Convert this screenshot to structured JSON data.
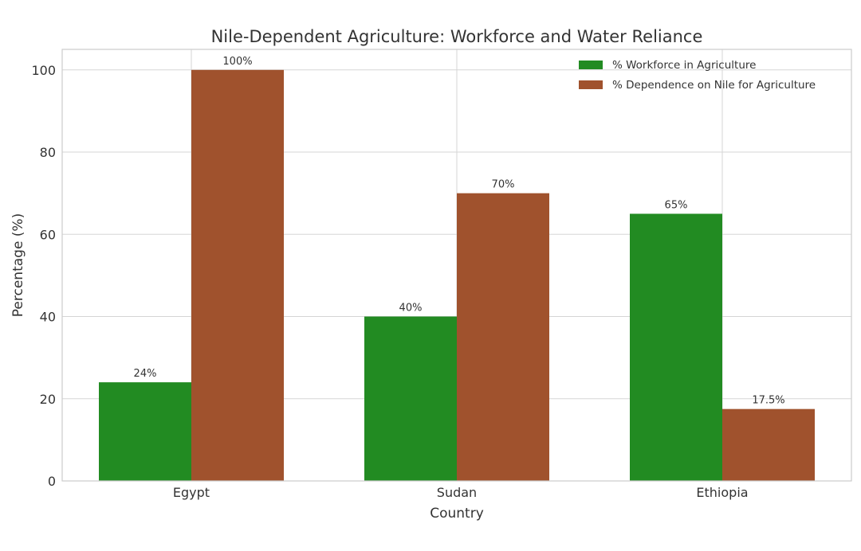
{
  "chart_data": {
    "type": "bar",
    "title": "Nile-Dependent Agriculture: Workforce and Water Reliance",
    "xlabel": "Country",
    "ylabel": "Percentage (%)",
    "categories": [
      "Egypt",
      "Sudan",
      "Ethiopia"
    ],
    "series": [
      {
        "name": "% Workforce in Agriculture",
        "values": [
          24,
          40,
          65
        ],
        "labels": [
          "24%",
          "40%",
          "65%"
        ],
        "color": "#228b22"
      },
      {
        "name": "% Dependence on Nile for Agriculture",
        "values": [
          100,
          70,
          17.5
        ],
        "labels": [
          "100%",
          "70%",
          "17.5%"
        ],
        "color": "#a0522d"
      }
    ],
    "ylim": [
      0,
      105
    ],
    "yticks": [
      0,
      20,
      40,
      60,
      80,
      100
    ],
    "grid": true,
    "legend": "top-right"
  }
}
